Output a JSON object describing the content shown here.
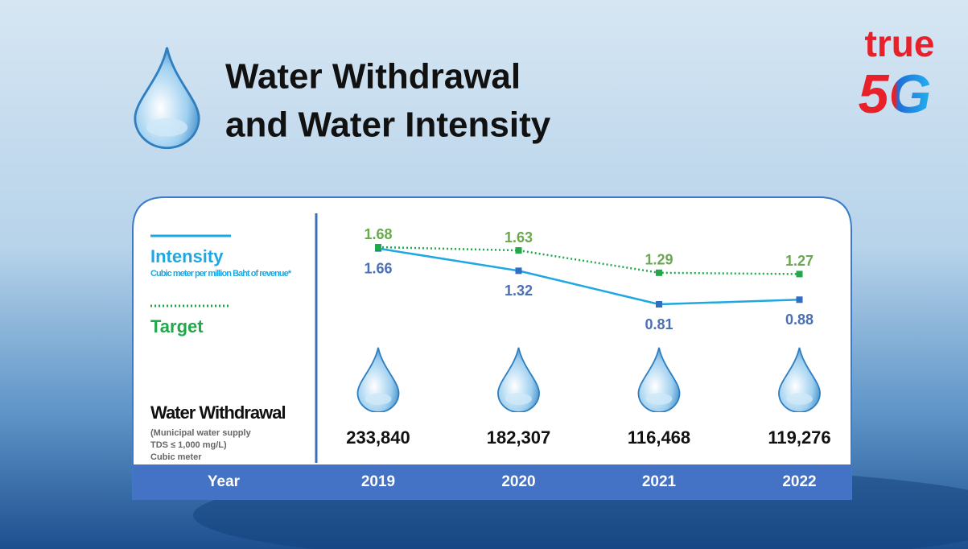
{
  "header": {
    "title_lines": [
      "Water Withdrawal",
      "and Water Intensity"
    ],
    "logo_top": "true",
    "logo_bottom": "5G"
  },
  "chart_data": {
    "type": "line",
    "categories": [
      "2019",
      "2020",
      "2021",
      "2022"
    ],
    "series": [
      {
        "name": "Intensity",
        "color": "#1ea7e1",
        "label_color": "#4a6fb5",
        "dashed": false,
        "values": [
          1.66,
          1.32,
          0.81,
          0.88
        ]
      },
      {
        "name": "Target",
        "color": "#21a84a",
        "label_color": "#6aa84f",
        "dashed": true,
        "values": [
          1.68,
          1.63,
          1.29,
          1.27
        ]
      }
    ],
    "legend_note": "Cubic meter per million Baht of revenue*",
    "axis_label": "Year"
  },
  "withdrawal": {
    "title": "Water Withdrawal",
    "note_lines": [
      "(Municipal water supply",
      "TDS ≤ 1,000 mg/L)",
      "Cubic meter"
    ],
    "values": [
      233840,
      182307,
      116468,
      119276
    ],
    "value_labels": [
      "233,840",
      "182,307",
      "116,468",
      "119,276"
    ]
  }
}
